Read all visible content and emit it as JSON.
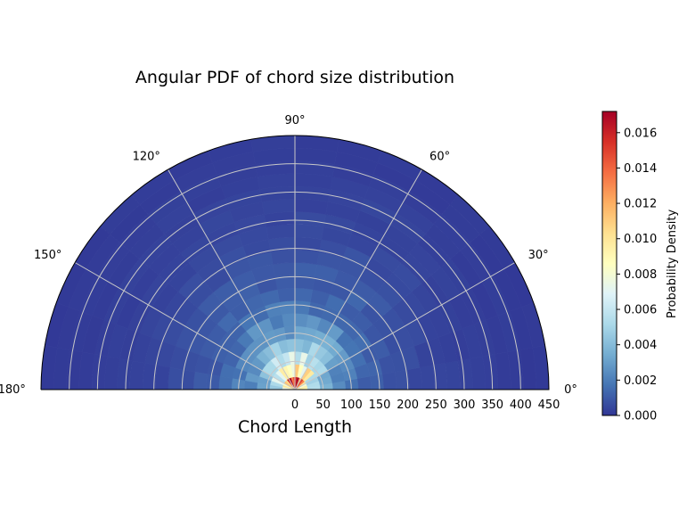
{
  "chart_data": {
    "type": "heatmap",
    "subtype": "polar-half",
    "title": "Angular PDF of chord size distribution",
    "xlabel": "Chord Length",
    "angle_range_deg": [
      0,
      180
    ],
    "angle_tick_labels": [
      "0°",
      "30°",
      "60°",
      "90°",
      "120°",
      "150°",
      "180°"
    ],
    "radial_range": [
      0,
      450
    ],
    "radial_ticks": [
      0,
      50,
      100,
      150,
      200,
      250,
      300,
      350,
      400,
      450
    ],
    "radial_tick_labels": [
      "0",
      "50",
      "100",
      "150",
      "200",
      "250",
      "300",
      "350",
      "400",
      "450"
    ],
    "radial_bin_width": 22.5,
    "angular_bin_width_deg": 10,
    "grid": true,
    "colormap": "RdYlBu_r",
    "colorbar": {
      "label": "Probability Density",
      "range": [
        0,
        0.0172
      ],
      "ticks": [
        0.0,
        0.002,
        0.004,
        0.006,
        0.008,
        0.01,
        0.012,
        0.014,
        0.016
      ],
      "tick_labels": [
        "0.000",
        "0.002",
        "0.004",
        "0.006",
        "0.008",
        "0.010",
        "0.012",
        "0.014",
        "0.016"
      ]
    },
    "radial_density_profile": [
      {
        "r": 11.25,
        "density": 0.016
      },
      {
        "r": 33.75,
        "density": 0.0095
      },
      {
        "r": 56.25,
        "density": 0.0065
      },
      {
        "r": 78.75,
        "density": 0.0045
      },
      {
        "r": 101.25,
        "density": 0.0033
      },
      {
        "r": 123.75,
        "density": 0.0025
      },
      {
        "r": 146.25,
        "density": 0.0019
      },
      {
        "r": 168.75,
        "density": 0.0015
      },
      {
        "r": 191.25,
        "density": 0.0012
      },
      {
        "r": 213.75,
        "density": 0.001
      },
      {
        "r": 236.25,
        "density": 0.0008
      },
      {
        "r": 258.75,
        "density": 0.0007
      },
      {
        "r": 281.25,
        "density": 0.0006
      },
      {
        "r": 303.75,
        "density": 0.0005
      },
      {
        "r": 326.25,
        "density": 0.0004
      },
      {
        "r": 348.75,
        "density": 0.0004
      },
      {
        "r": 371.25,
        "density": 0.0003
      },
      {
        "r": 393.75,
        "density": 0.0003
      },
      {
        "r": 416.25,
        "density": 0.0002
      },
      {
        "r": 438.75,
        "density": 0.0002
      }
    ],
    "angular_emphasis_deg": [
      90,
      55,
      125
    ]
  }
}
